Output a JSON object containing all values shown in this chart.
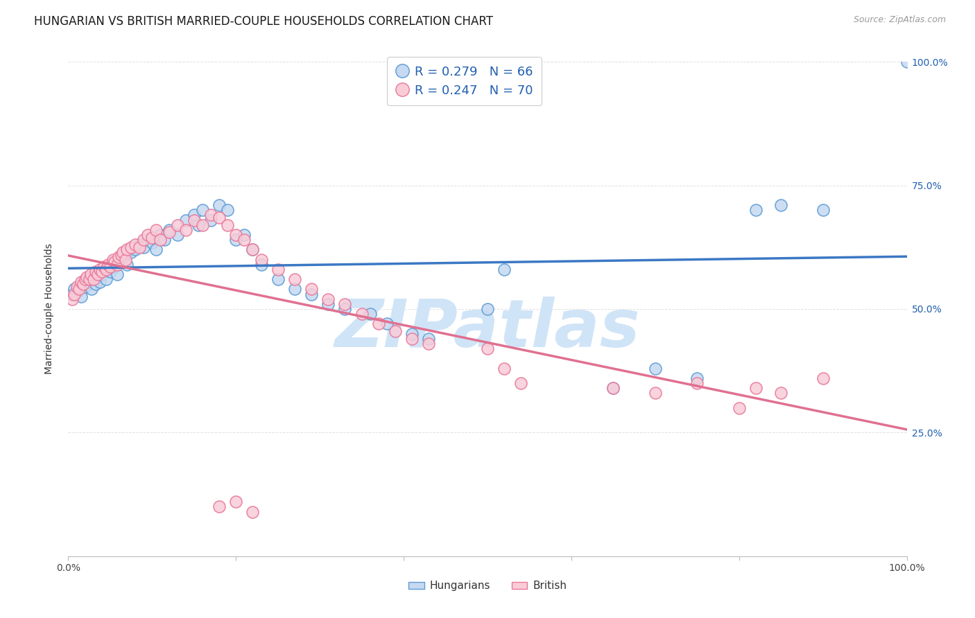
{
  "title": "HUNGARIAN VS BRITISH MARRIED-COUPLE HOUSEHOLDS CORRELATION CHART",
  "source": "Source: ZipAtlas.com",
  "ylabel": "Married-couple Households",
  "legend_line1_label": "R = 0.279   N = 66",
  "legend_line2_label": "R = 0.247   N = 70",
  "legend_label_hungarian": "Hungarians",
  "legend_label_british": "British",
  "blue_fill": "#c6d9f0",
  "blue_edge": "#5b9bd5",
  "pink_fill": "#f9ccd8",
  "pink_edge": "#e8799a",
  "blue_line": "#3b78c4",
  "pink_line": "#e07090",
  "text_blue": "#2060b0",
  "watermark_color": "#d0e4f7",
  "background": "#ffffff",
  "grid_color": "#e0e0e0",
  "title_color": "#1a1a1a",
  "source_color": "#999999",
  "right_label_color": "#2060b0",
  "xlim": [
    0.0,
    1.0
  ],
  "ylim": [
    0.0,
    1.0
  ],
  "hun_x": [
    0.005,
    0.007,
    0.01,
    0.012,
    0.015,
    0.018,
    0.02,
    0.022,
    0.025,
    0.028,
    0.03,
    0.033,
    0.035,
    0.038,
    0.04,
    0.045,
    0.048,
    0.05,
    0.053,
    0.055,
    0.058,
    0.06,
    0.062,
    0.065,
    0.068,
    0.07,
    0.075,
    0.08,
    0.085,
    0.09,
    0.095,
    0.1,
    0.105,
    0.11,
    0.115,
    0.12,
    0.13,
    0.14,
    0.15,
    0.155,
    0.16,
    0.17,
    0.18,
    0.19,
    0.2,
    0.21,
    0.22,
    0.23,
    0.25,
    0.27,
    0.29,
    0.31,
    0.33,
    0.36,
    0.38,
    0.41,
    0.43,
    0.5,
    0.52,
    0.65,
    0.7,
    0.75,
    0.82,
    0.85,
    0.9,
    1.0
  ],
  "hun_y": [
    0.53,
    0.54,
    0.535,
    0.545,
    0.525,
    0.55,
    0.545,
    0.56,
    0.555,
    0.54,
    0.56,
    0.55,
    0.565,
    0.555,
    0.57,
    0.56,
    0.58,
    0.575,
    0.59,
    0.585,
    0.57,
    0.595,
    0.6,
    0.605,
    0.61,
    0.59,
    0.615,
    0.62,
    0.63,
    0.625,
    0.64,
    0.635,
    0.62,
    0.65,
    0.64,
    0.66,
    0.65,
    0.68,
    0.69,
    0.67,
    0.7,
    0.68,
    0.71,
    0.7,
    0.64,
    0.65,
    0.62,
    0.59,
    0.56,
    0.54,
    0.53,
    0.51,
    0.5,
    0.49,
    0.47,
    0.45,
    0.44,
    0.5,
    0.58,
    0.34,
    0.38,
    0.36,
    0.7,
    0.71,
    0.7,
    1.0
  ],
  "brit_x": [
    0.005,
    0.007,
    0.01,
    0.013,
    0.015,
    0.018,
    0.02,
    0.022,
    0.025,
    0.027,
    0.03,
    0.033,
    0.035,
    0.038,
    0.04,
    0.043,
    0.045,
    0.048,
    0.05,
    0.053,
    0.055,
    0.058,
    0.06,
    0.063,
    0.065,
    0.068,
    0.07,
    0.075,
    0.08,
    0.085,
    0.09,
    0.095,
    0.1,
    0.105,
    0.11,
    0.12,
    0.13,
    0.14,
    0.15,
    0.16,
    0.17,
    0.18,
    0.19,
    0.2,
    0.21,
    0.22,
    0.23,
    0.25,
    0.27,
    0.29,
    0.31,
    0.33,
    0.35,
    0.37,
    0.39,
    0.41,
    0.43,
    0.5,
    0.52,
    0.54,
    0.65,
    0.7,
    0.75,
    0.8,
    0.82,
    0.85,
    0.9,
    0.18,
    0.2,
    0.22
  ],
  "brit_y": [
    0.52,
    0.53,
    0.545,
    0.54,
    0.555,
    0.55,
    0.56,
    0.565,
    0.56,
    0.57,
    0.56,
    0.575,
    0.57,
    0.58,
    0.575,
    0.585,
    0.58,
    0.59,
    0.585,
    0.6,
    0.595,
    0.59,
    0.605,
    0.61,
    0.615,
    0.6,
    0.62,
    0.625,
    0.63,
    0.625,
    0.64,
    0.65,
    0.645,
    0.66,
    0.64,
    0.655,
    0.67,
    0.66,
    0.68,
    0.67,
    0.69,
    0.685,
    0.67,
    0.65,
    0.64,
    0.62,
    0.6,
    0.58,
    0.56,
    0.54,
    0.52,
    0.51,
    0.49,
    0.47,
    0.455,
    0.44,
    0.43,
    0.42,
    0.38,
    0.35,
    0.34,
    0.33,
    0.35,
    0.3,
    0.34,
    0.33,
    0.36,
    0.1,
    0.11,
    0.09
  ],
  "seed": 42
}
